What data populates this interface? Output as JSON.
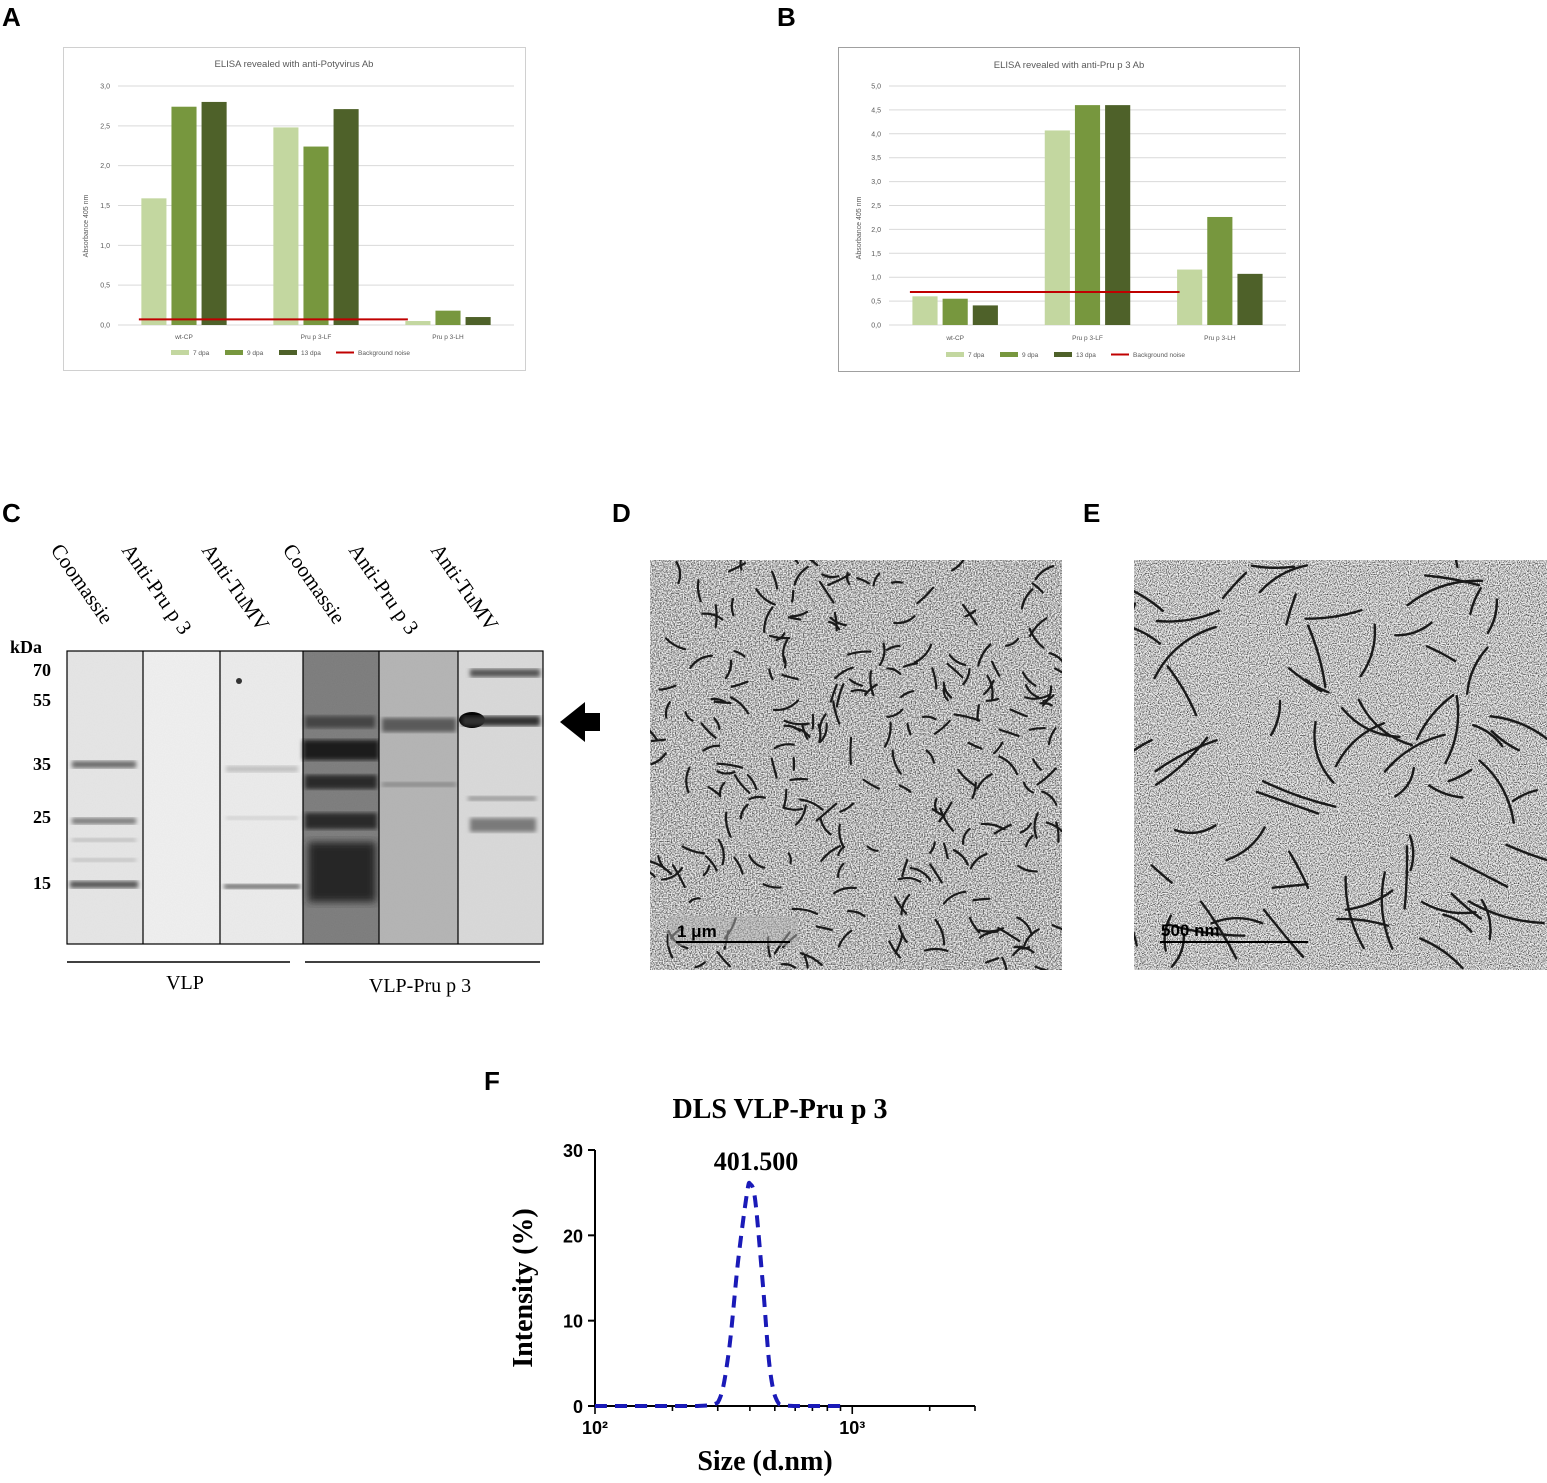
{
  "panels": {
    "a": "A",
    "b": "B",
    "c": "C",
    "d": "D",
    "e": "E",
    "f": "F"
  },
  "legend": {
    "s1": "7 dpa",
    "s2": "9 dpa",
    "s3": "13 dpa",
    "noise": "Background noise"
  },
  "colors": {
    "s1": "#c3d7a0",
    "s2": "#77973e",
    "s3": "#4e6129",
    "noise": "#c00000",
    "dls": "#1a1ab8"
  },
  "chart_data": [
    {
      "id": "A",
      "type": "bar",
      "title": "ELISA revealed with anti-Potyvirus Ab",
      "ylabel": "Absorbance 405 nm",
      "ylim": [
        0,
        3.0
      ],
      "yticks": [
        "0,0",
        "0,5",
        "1,0",
        "1,5",
        "2,0",
        "2,5",
        "3,0"
      ],
      "categories": [
        "wt-CP",
        "Pru p 3-LF",
        "Pru p 3-LH"
      ],
      "series": [
        {
          "name": "7 dpa",
          "values": [
            1.59,
            2.48,
            0.05
          ]
        },
        {
          "name": "9 dpa",
          "values": [
            2.74,
            2.24,
            0.18
          ]
        },
        {
          "name": "13 dpa",
          "values": [
            2.8,
            2.71,
            0.1
          ]
        }
      ],
      "background_noise": 0.07,
      "grid": true,
      "legend_position": "bottom"
    },
    {
      "id": "B",
      "type": "bar",
      "title": "ELISA revealed with anti-Pru p 3 Ab",
      "ylabel": "Absorbance 405 nm",
      "ylim": [
        0,
        5.0
      ],
      "yticks": [
        "0,0",
        "0,5",
        "1,0",
        "1,5",
        "2,0",
        "2,5",
        "3,0",
        "3,5",
        "4,0",
        "4,5",
        "5,0"
      ],
      "categories": [
        "wt-CP",
        "Pru p 3-LF",
        "Pru p 3-LH"
      ],
      "series": [
        {
          "name": "7 dpa",
          "values": [
            0.6,
            4.07,
            1.16
          ]
        },
        {
          "name": "9 dpa",
          "values": [
            0.55,
            4.6,
            2.26
          ]
        },
        {
          "name": "13 dpa",
          "values": [
            0.41,
            4.6,
            1.07
          ]
        }
      ],
      "background_noise": 0.69,
      "grid": true,
      "legend_position": "bottom"
    },
    {
      "id": "F",
      "type": "line",
      "title": "DLS VLP-Pru p 3",
      "xlabel": "Size (d.nm)",
      "ylabel": "Intensity (%)",
      "x_scale": "log",
      "xlim": [
        100,
        3000
      ],
      "ylim": [
        0,
        30
      ],
      "xticks": [
        "10²",
        "10³"
      ],
      "yticks": [
        "0",
        "10",
        "20",
        "30"
      ],
      "peak_label": "401.500",
      "x": [
        100,
        150,
        200,
        250,
        300,
        330,
        360,
        390,
        401.5,
        420,
        450,
        480,
        520,
        600,
        700,
        800,
        900
      ],
      "y": [
        0,
        0,
        0,
        0,
        0.4,
        6,
        17,
        25,
        26,
        24,
        14,
        4,
        0.2,
        0,
        0,
        0,
        0
      ]
    }
  ],
  "blot": {
    "kda_label": "kDa",
    "markers": [
      {
        "label": "70",
        "kda": 70
      },
      {
        "label": "55",
        "kda": 55
      },
      {
        "label": "35",
        "kda": 35
      },
      {
        "label": "25",
        "kda": 25
      },
      {
        "label": "15",
        "kda": 15
      }
    ],
    "lanes": [
      "Coomassie",
      "Anti-Pru p 3",
      "Anti-TuMV",
      "Coomassie",
      "Anti-Pru p 3",
      "Anti-TuMV"
    ],
    "groups": [
      "VLP",
      "VLP-Pru p 3"
    ]
  },
  "micrographs": {
    "d_scale": "1 μm",
    "e_scale": "500 nm"
  }
}
